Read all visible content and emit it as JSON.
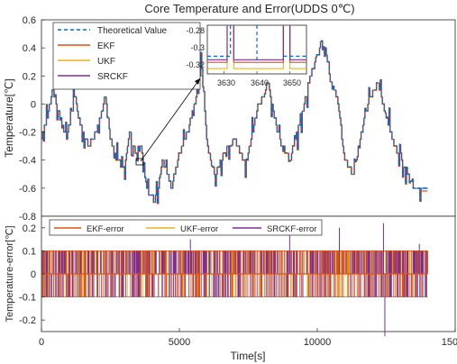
{
  "chart_data": [
    {
      "type": "line",
      "title": "Core Temperature and Error(UDDS 0℃)",
      "ylabel": "Temperature[℃]",
      "xlim": [
        0,
        15000
      ],
      "ylim": [
        -0.8,
        0.6
      ],
      "yticks": [
        "0.6",
        "0.4",
        "0.2",
        "0",
        "-0.2",
        "-0.4",
        "-0.6",
        "-0.8"
      ],
      "grid": false,
      "legend_position": "top-left",
      "series": [
        {
          "name": "Theoretical Value",
          "color": "#0072BD",
          "style": "dashed"
        },
        {
          "name": "EKF",
          "color": "#D95319"
        },
        {
          "name": "UKF",
          "color": "#EDB120"
        },
        {
          "name": "SRCKF",
          "color": "#7E2F8E"
        }
      ],
      "x": [
        0,
        300,
        400,
        700,
        900,
        1200,
        1400,
        1700,
        2000,
        2300,
        2500,
        2700,
        3000,
        3200,
        3400,
        3600,
        3800,
        4100,
        4400,
        4700,
        5000,
        5300,
        5600,
        5800,
        6000,
        6300,
        6600,
        7000,
        7400,
        7800,
        8200,
        8600,
        9000,
        9400,
        9800,
        10200,
        10500,
        10700,
        11000,
        11300,
        11600,
        11900,
        12200,
        12500,
        12800,
        13100,
        13400,
        13600,
        13800,
        14000
      ],
      "values": [
        -0.25,
        0.0,
        0.1,
        -0.1,
        -0.25,
        0.05,
        -0.15,
        -0.3,
        -0.2,
        0.05,
        -0.25,
        -0.4,
        -0.45,
        -0.2,
        -0.35,
        -0.3,
        -0.6,
        -0.7,
        -0.4,
        -0.6,
        -0.35,
        -0.2,
        0.05,
        0.3,
        -0.3,
        -0.5,
        -0.35,
        -0.25,
        -0.45,
        -0.05,
        0.15,
        -0.25,
        -0.4,
        -0.1,
        0.25,
        0.45,
        0.2,
        0.05,
        -0.4,
        -0.5,
        -0.2,
        0.05,
        0.15,
        -0.1,
        -0.3,
        -0.4,
        -0.55,
        -0.62,
        -0.62,
        -0.62
      ],
      "inset": {
        "xlim": [
          3625,
          3655
        ],
        "ylim": [
          -0.33,
          -0.275
        ],
        "xticks": [
          "3630",
          "3640",
          "3650"
        ],
        "yticks": [
          "-0.28",
          "-0.3",
          "-0.32"
        ],
        "callout_target": {
          "x": 3600,
          "y": -0.46
        }
      }
    },
    {
      "type": "line",
      "xlabel": "Time[s]",
      "ylabel": "Temperature-error[℃]",
      "xlim": [
        0,
        15000
      ],
      "ylim": [
        -0.25,
        0.25
      ],
      "xticks": [
        "0",
        "5000",
        "10000",
        "15000"
      ],
      "yticks": [
        "0.2",
        "0.1",
        "0",
        "-0.1",
        "-0.2"
      ],
      "legend_position": "top",
      "series": [
        {
          "name": "EKF-error",
          "color": "#D95319"
        },
        {
          "name": "UKF-error",
          "color": "#EDB120"
        },
        {
          "name": "SRCKF-error",
          "color": "#7E2F8E"
        }
      ],
      "error_band": [
        -0.1,
        0.1
      ],
      "spikes": [
        {
          "x": 5400,
          "y": 0.15
        },
        {
          "x": 9000,
          "y": 0.2
        },
        {
          "x": 10800,
          "y": 0.2
        },
        {
          "x": 12400,
          "y": 0.22
        },
        {
          "x": 12450,
          "y": -0.27
        },
        {
          "x": 13700,
          "y": 0.13
        }
      ]
    }
  ]
}
